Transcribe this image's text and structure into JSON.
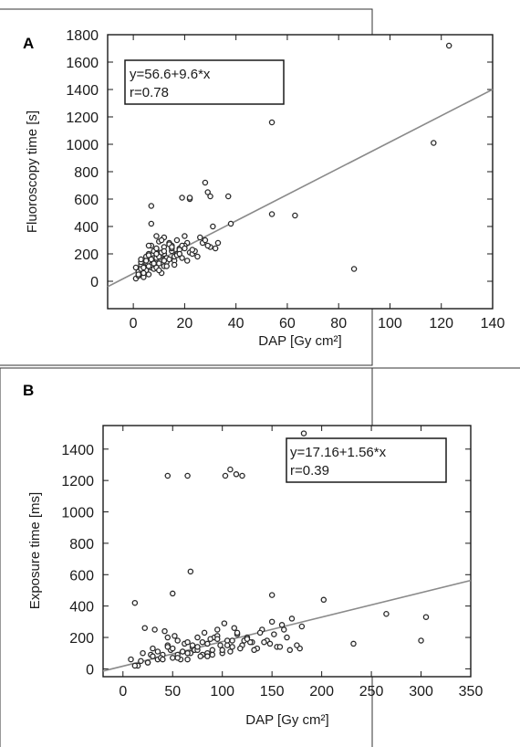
{
  "chart_data": [
    {
      "panel": "A",
      "type": "scatter",
      "xlabel": "DAP [Gy cm²]",
      "ylabel": "Fluoroscopy time [s]",
      "xlim": [
        -10,
        140
      ],
      "ylim": [
        -200,
        1800
      ],
      "xticks": [
        0,
        20,
        40,
        60,
        80,
        100,
        120,
        140
      ],
      "yticks": [
        0,
        200,
        400,
        600,
        800,
        1000,
        1200,
        1400,
        1600,
        1800
      ],
      "fit": {
        "intercept": 56.6,
        "slope": 9.6
      },
      "annotation": [
        "y=56.6+9.6*x",
        "r=0.78"
      ],
      "x": [
        123,
        117,
        54,
        86,
        54,
        63,
        37,
        28,
        30,
        38,
        7,
        7,
        19,
        22,
        22,
        9,
        31,
        29,
        12,
        1,
        2,
        3,
        4,
        4,
        5,
        5,
        6,
        6,
        7,
        7,
        8,
        8,
        9,
        10,
        10,
        11,
        11,
        12,
        12,
        13,
        14,
        15,
        16,
        17,
        18,
        20,
        22,
        25,
        27,
        30,
        33,
        2,
        3,
        5,
        6,
        8,
        9,
        11,
        13,
        15,
        17,
        19,
        21,
        23,
        26,
        29,
        1,
        3,
        4,
        6,
        7,
        9,
        10,
        12,
        14,
        16,
        18,
        20,
        24,
        28,
        32,
        3,
        5,
        7,
        9,
        11,
        13,
        15,
        17,
        19,
        21,
        23,
        2,
        4,
        6,
        8,
        10,
        12,
        14,
        16,
        18,
        20,
        3,
        6,
        9,
        12,
        15
      ],
      "y": [
        1720,
        1010,
        1160,
        90,
        490,
        480,
        620,
        720,
        620,
        420,
        550,
        420,
        610,
        600,
        610,
        330,
        400,
        650,
        320,
        20,
        40,
        60,
        110,
        30,
        80,
        150,
        50,
        200,
        100,
        260,
        170,
        90,
        230,
        130,
        290,
        60,
        190,
        250,
        110,
        170,
        280,
        220,
        150,
        300,
        240,
        330,
        210,
        180,
        280,
        250,
        280,
        70,
        120,
        180,
        140,
        220,
        100,
        300,
        140,
        260,
        200,
        170,
        280,
        200,
        320,
        260,
        100,
        140,
        60,
        190,
        160,
        240,
        80,
        200,
        270,
        180,
        230,
        260,
        220,
        300,
        240,
        90,
        150,
        120,
        170,
        210,
        110,
        240,
        190,
        260,
        150,
        230,
        50,
        100,
        260,
        130,
        180,
        220,
        160,
        120,
        200,
        240,
        160,
        110,
        200,
        150,
        250
      ]
    },
    {
      "panel": "B",
      "type": "scatter",
      "xlabel": "DAP [Gy cm²]",
      "ylabel": "Exposure time [ms]",
      "xlim": [
        -20,
        350
      ],
      "ylim": [
        -50,
        1550
      ],
      "xticks": [
        0,
        50,
        100,
        150,
        200,
        250,
        300,
        350
      ],
      "yticks": [
        0,
        200,
        400,
        600,
        800,
        1000,
        1200,
        1400
      ],
      "fit": {
        "intercept": 17.16,
        "slope": 1.56
      },
      "annotation": [
        "y=17.16+1.56*x",
        "r=0.39"
      ],
      "x": [
        182,
        108,
        114,
        120,
        45,
        65,
        103,
        68,
        12,
        50,
        150,
        202,
        178,
        265,
        300,
        305,
        232,
        8,
        15,
        20,
        25,
        30,
        35,
        40,
        45,
        50,
        55,
        60,
        65,
        70,
        75,
        80,
        85,
        90,
        95,
        100,
        105,
        110,
        115,
        120,
        125,
        130,
        135,
        140,
        145,
        150,
        155,
        160,
        165,
        170,
        175,
        12,
        22,
        32,
        42,
        52,
        62,
        72,
        82,
        92,
        102,
        112,
        122,
        132,
        142,
        152,
        162,
        18,
        28,
        38,
        48,
        58,
        68,
        78,
        88,
        98,
        108,
        118,
        128,
        138,
        148,
        158,
        168,
        25,
        35,
        45,
        55,
        65,
        75,
        85,
        95,
        105,
        115,
        125,
        30,
        40,
        50,
        60,
        70,
        80,
        90,
        100,
        110,
        45,
        55,
        65,
        75,
        85,
        95,
        180
      ],
      "y": [
        1500,
        1270,
        1240,
        1230,
        1230,
        1230,
        1230,
        620,
        420,
        480,
        470,
        440,
        130,
        350,
        180,
        330,
        160,
        60,
        20,
        100,
        40,
        130,
        60,
        90,
        150,
        70,
        180,
        110,
        60,
        140,
        200,
        90,
        160,
        120,
        250,
        100,
        180,
        140,
        220,
        150,
        200,
        170,
        130,
        250,
        180,
        300,
        140,
        280,
        200,
        320,
        150,
        20,
        260,
        250,
        240,
        210,
        160,
        120,
        230,
        200,
        290,
        260,
        180,
        120,
        170,
        220,
        250,
        50,
        90,
        70,
        120,
        60,
        100,
        80,
        190,
        150,
        110,
        130,
        170,
        230,
        160,
        140,
        120,
        40,
        110,
        140,
        90,
        170,
        120,
        100,
        210,
        150,
        230,
        190,
        80,
        60,
        130,
        110,
        150,
        170,
        90,
        120,
        180,
        200,
        70,
        100,
        140,
        80,
        190,
        270
      ]
    }
  ]
}
